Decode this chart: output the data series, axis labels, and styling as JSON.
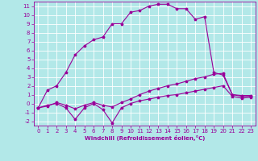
{
  "xlabel": "Windchill (Refroidissement éolien,°C)",
  "background_color": "#b2e8e8",
  "grid_color": "#ffffff",
  "line_color": "#990099",
  "spine_color": "#990099",
  "ylim": [
    -2.5,
    11.5
  ],
  "xlim": [
    -0.5,
    23.5
  ],
  "yticks": [
    -2,
    -1,
    0,
    1,
    2,
    3,
    4,
    5,
    6,
    7,
    8,
    9,
    10,
    11
  ],
  "xticks": [
    0,
    1,
    2,
    3,
    4,
    5,
    6,
    7,
    8,
    9,
    10,
    11,
    12,
    13,
    14,
    15,
    16,
    17,
    18,
    19,
    20,
    21,
    22,
    23
  ],
  "line1_x": [
    0,
    1,
    2,
    3,
    4,
    5,
    6,
    7,
    8,
    9,
    10,
    11,
    12,
    13,
    14,
    15,
    16,
    17,
    18,
    19,
    20,
    21,
    22,
    23
  ],
  "line1_y": [
    -0.5,
    1.5,
    2.0,
    3.5,
    5.5,
    6.5,
    7.2,
    7.5,
    9.0,
    9.0,
    10.3,
    10.5,
    11.0,
    11.2,
    11.2,
    10.7,
    10.7,
    9.5,
    9.8,
    3.5,
    3.2,
    1.0,
    0.8,
    0.8
  ],
  "line2_x": [
    0,
    1,
    2,
    3,
    4,
    5,
    6,
    7,
    8,
    9,
    10,
    11,
    12,
    13,
    14,
    15,
    16,
    17,
    18,
    19,
    20,
    21,
    22,
    23
  ],
  "line2_y": [
    -0.5,
    -0.2,
    0.0,
    -0.5,
    -1.8,
    -0.5,
    0.0,
    -0.7,
    -2.2,
    -0.5,
    0.0,
    0.3,
    0.5,
    0.7,
    0.9,
    1.0,
    1.2,
    1.4,
    1.6,
    1.8,
    2.0,
    0.8,
    0.6,
    0.7
  ],
  "line3_x": [
    0,
    1,
    2,
    3,
    4,
    5,
    6,
    7,
    8,
    9,
    10,
    11,
    12,
    13,
    14,
    15,
    16,
    17,
    18,
    19,
    20,
    21,
    22,
    23
  ],
  "line3_y": [
    -0.5,
    -0.3,
    0.1,
    -0.2,
    -0.6,
    -0.2,
    0.1,
    -0.2,
    -0.4,
    0.1,
    0.5,
    1.0,
    1.4,
    1.7,
    2.0,
    2.2,
    2.5,
    2.8,
    3.0,
    3.3,
    3.4,
    1.0,
    0.9,
    0.9
  ],
  "tick_fontsize": 5,
  "xlabel_fontsize": 5,
  "marker": "*",
  "markersize": 2.5,
  "linewidth": 0.8
}
